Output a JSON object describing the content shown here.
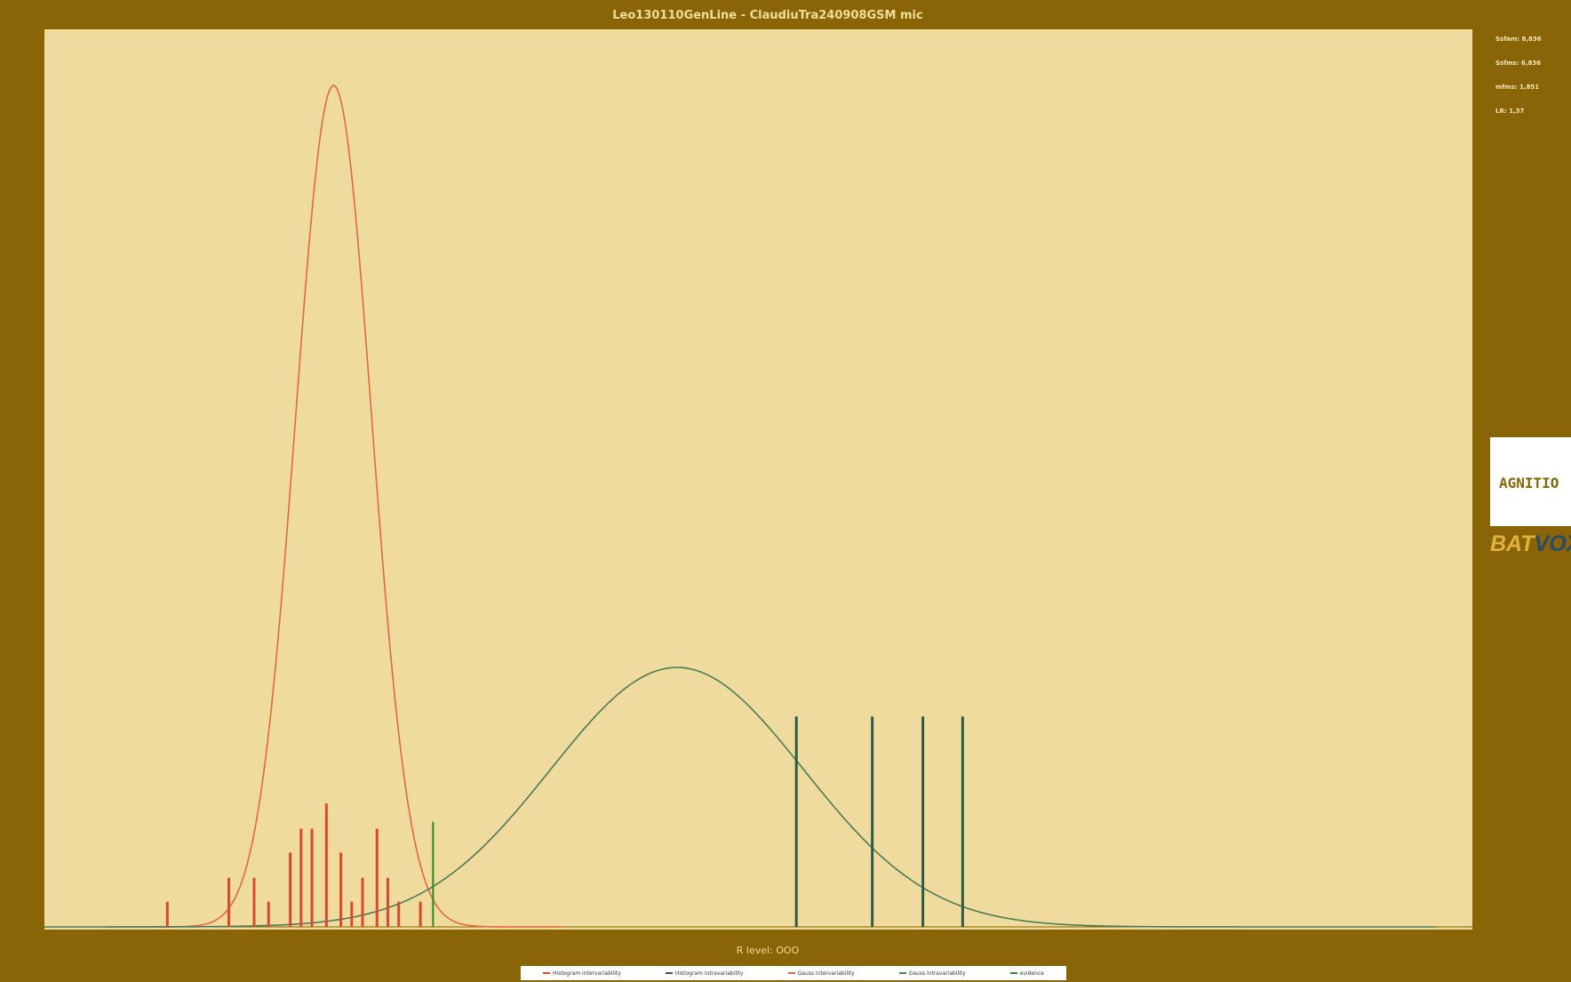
{
  "title": "Leo130110GenLine - ClaudiuTra240908GSM mic",
  "stats": [
    "Ssfam: 8,836",
    "Ssfms: 6,836",
    "mfms: 1,851",
    "LR: 1,37"
  ],
  "logos": {
    "agnitio": "AGNITIO",
    "batvox_bat": "BAT",
    "batvox_vox": "VOX"
  },
  "xlabel": "R level: OOO",
  "legend": [
    {
      "label": "Histogram intervariability",
      "color": "#d94a2a"
    },
    {
      "label": "Histogram intravariability",
      "color": "#2f5a46"
    },
    {
      "label": "Gauss intervariability",
      "color": "#e06a40"
    },
    {
      "label": "Gauss intravariability",
      "color": "#4e7a56"
    },
    {
      "label": "evidence",
      "color": "#2f8a1a"
    }
  ],
  "chart_data": {
    "type": "line",
    "title": "Leo130110GenLine - ClaudiuTra240908GSM mic",
    "xlabel": "R level: OOO",
    "ylabel": "",
    "xlim": [
      -10.5,
      29.0
    ],
    "ylim": [
      0.0,
      0.64
    ],
    "grid": false,
    "legend_position": "bottom",
    "series": [
      {
        "name": "Gauss intervariability",
        "kind": "gaussian",
        "mean": -2.5,
        "sd": 1.05,
        "peak": 0.6,
        "color": "#e06a40"
      },
      {
        "name": "Gauss intravariability",
        "kind": "gaussian",
        "mean": 7.0,
        "sd": 3.5,
        "peak": 0.185,
        "color": "#4e7a56"
      },
      {
        "name": "Histogram intervariability",
        "kind": "bars",
        "color": "#d94a2a",
        "x": [
          -7.1,
          -5.4,
          -4.7,
          -4.3,
          -3.7,
          -3.4,
          -3.1,
          -2.7,
          -2.3,
          -2.0,
          -1.7,
          -1.3,
          -1.0,
          -0.7,
          -0.1
        ],
        "values": [
          0.018,
          0.035,
          0.035,
          0.018,
          0.053,
          0.07,
          0.07,
          0.088,
          0.053,
          0.018,
          0.035,
          0.07,
          0.035,
          0.018,
          0.018
        ]
      },
      {
        "name": "Histogram intravariability",
        "kind": "bars",
        "color": "#2f5a46",
        "x": [
          10.3,
          12.4,
          13.8,
          14.9
        ],
        "values": [
          0.15,
          0.15,
          0.15,
          0.15
        ]
      },
      {
        "name": "evidence",
        "kind": "vline",
        "x": 0.25,
        "value": 0.075,
        "color": "#2f8a1a"
      }
    ]
  }
}
